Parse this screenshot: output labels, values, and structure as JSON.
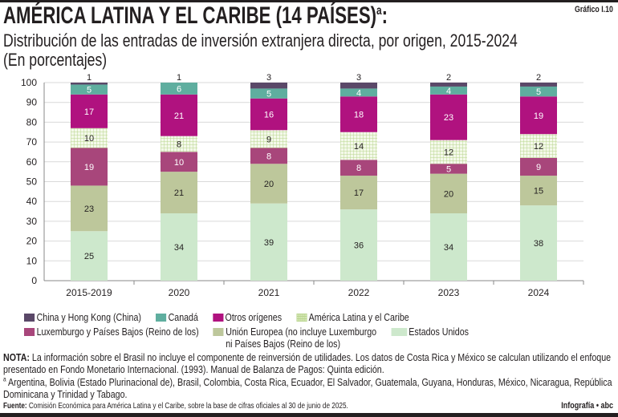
{
  "header": {
    "title": "AMÉRICA LATINA Y EL CARIBE (14 PAÍSES)",
    "title_sup": "a",
    "title_colon": ":",
    "figure_label": "Gráfico I.10",
    "subtitle": "Distribución de las entradas de inversión extranjera directa, por origen, 2015-2024",
    "units": "(En porcentajes)"
  },
  "chart_data": {
    "type": "bar",
    "stacked": true,
    "categories": [
      "2015-2019",
      "2020",
      "2021",
      "2022",
      "2023",
      "2024"
    ],
    "ylim": [
      0,
      100
    ],
    "yticks": [
      0,
      10,
      20,
      30,
      40,
      50,
      60,
      70,
      80,
      90,
      100
    ],
    "grid": true,
    "legend_position": "bottom",
    "series": [
      {
        "name": "Estados Unidos",
        "color": "#cde8cc",
        "values": [
          25,
          34,
          39,
          36,
          34,
          38
        ]
      },
      {
        "name": "Unión Europea (no incluye Luxemburgo ni Países Bajos (Reino de los)",
        "color": "#bdc79b",
        "values": [
          23,
          21,
          20,
          17,
          20,
          15
        ]
      },
      {
        "name": "Luxemburgo y Países Bajos (Reino de los)",
        "color": "#a8467b",
        "values": [
          19,
          10,
          8,
          8,
          5,
          9
        ]
      },
      {
        "name": "América Latina y el Caribe",
        "color": "#dcebc0",
        "pattern": "grid",
        "values": [
          10,
          8,
          9,
          14,
          12,
          12
        ]
      },
      {
        "name": "Otros orígenes",
        "color": "#b0127f",
        "values": [
          17,
          21,
          16,
          18,
          23,
          19
        ]
      },
      {
        "name": "Canadá",
        "color": "#5fae9f",
        "values": [
          5,
          6,
          5,
          4,
          4,
          5
        ]
      },
      {
        "name": "China y Hong Kong (China)",
        "color": "#5a4868",
        "values": [
          1,
          1,
          3,
          3,
          2,
          2
        ]
      }
    ]
  },
  "legend": {
    "row1": [
      "China y Hong Kong (China)",
      "Canadá",
      "Otros orígenes",
      "América Latina y el Caribe"
    ],
    "row2": [
      "Luxemburgo y Países Bajos (Reino de los)",
      "Unión Europea (no incluye Luxemburgo",
      "ni Países Bajos (Reino de los)",
      "Estados Unidos"
    ]
  },
  "notes": {
    "nota_label": "NOTA:",
    "nota_text": " La información sobre el Brasil no incluye el componente de reinversión de utilidades. Los datos de Costa Rica y México se calculan utilizando el enfoque presentado en Fondo Monetario Internacional. (1993). Manual de Balanza de Pagos: Quinta edición.",
    "footnote_mark": "a",
    "footnote_text": " Argentina, Bolivia (Estado Plurinacional de), Brasil, Colombia, Costa Rica, Ecuador, El Salvador, Guatemala, Guyana, Honduras, México, Nicaragua, República Dominicana y Trinidad y Tabago.",
    "source_label": "Fuente:",
    "source_text": " Comisión Económica para América Latina y el Caribe, sobre la base de cifras oficiales al 30 de junio de 2025.",
    "credit": "Infografía • abc"
  }
}
